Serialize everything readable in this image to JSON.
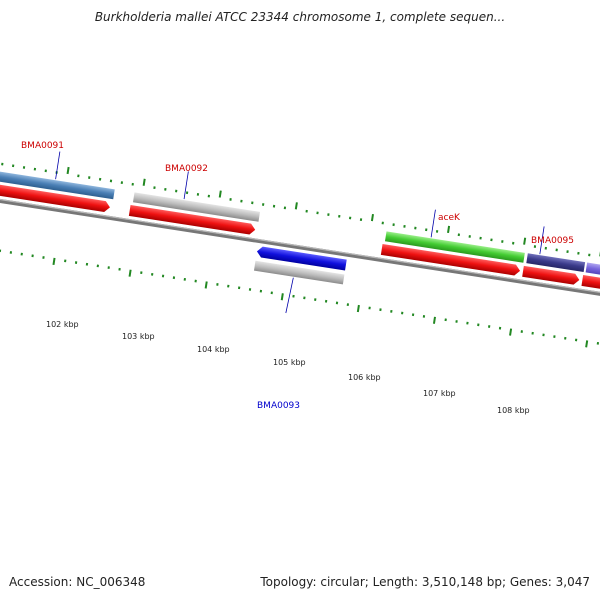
{
  "title": "Burkholderia mallei ATCC 23344 chromosome 1, complete sequen...",
  "accession": "Accession: NC_006348",
  "summary": "Topology: circular; Length: 3,510,148 bp; Genes: 3,047",
  "scale_labels": [
    "102 kbp",
    "103 kbp",
    "104 kbp",
    "105 kbp",
    "106 kbp",
    "107 kbp",
    "108 kbp"
  ],
  "gene_labels": [
    {
      "text": "BMA0091",
      "color": "#cc0000"
    },
    {
      "text": "BMA0092",
      "color": "#cc0000"
    },
    {
      "text": "aceK",
      "color": "#cc0000"
    },
    {
      "text": "BMA0095",
      "color": "#cc0000"
    },
    {
      "text": "BMA0093",
      "color": "#0000cc"
    }
  ],
  "colors": {
    "cds": "#ee1111",
    "gene_blue": "#4a7fb5",
    "gene_grey": "#b5b5b5",
    "gene_green": "#44cc33",
    "gene_navy": "#3a3a8a",
    "gene_violet": "#7766dd",
    "reverse_gene": "#1010dd",
    "backbone": "#777777",
    "ticks": "#228822"
  }
}
